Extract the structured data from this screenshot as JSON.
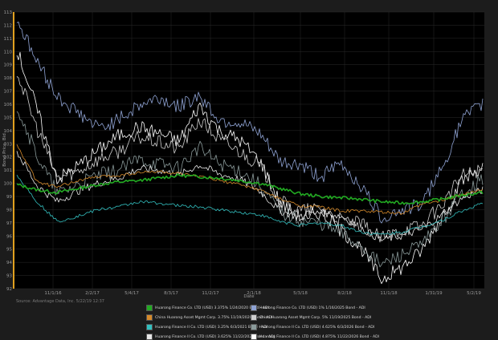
{
  "source": "Source: Advantage Data, Inc. 5/22/19 12:37",
  "chart_data": {
    "type": "line",
    "ylabel": "Bond Price, Bid",
    "xlabel": "Date",
    "ylim": [
      92,
      113
    ],
    "ytick_labels": [
      "92",
      "93",
      "94",
      "95",
      "96",
      "97",
      "98",
      "99",
      "100",
      "101",
      "102",
      "103",
      "104",
      "105",
      "106",
      "107",
      "108",
      "109",
      "110",
      "111",
      "112",
      "113"
    ],
    "xtick_labels": [
      "11/1/16",
      "2/2/17",
      "5/4/17",
      "8/3/17",
      "11/2/17",
      "2/1/18",
      "5/3/18",
      "8/2/18",
      "11/1/18",
      "1/31/19",
      "5/2/19"
    ],
    "grid": true,
    "legend_position": "bottom",
    "series": [
      {
        "name": "Huarong Finance Co. LTD (USD) 3.375% 1/24/2020 Bond - ADI",
        "color": "#22aa22",
        "values": [
          99.9,
          99.5,
          99.3,
          99.6,
          99.9,
          100.1,
          100.2,
          100.4,
          100.6,
          100.5,
          100.4,
          100.2,
          100.0,
          99.6,
          99.2,
          99.0,
          98.9,
          98.8,
          98.6,
          98.5,
          98.6,
          98.8,
          99.1,
          99.3
        ]
      },
      {
        "name": "Huarong Finance Co. LTD (USD) 1% 1/16/2025 Bond - ADI",
        "color": "#8fa3d4",
        "values": [
          112.5,
          109.2,
          106.6,
          105.4,
          104.2,
          104.8,
          105.9,
          106.5,
          105.8,
          106.7,
          104.8,
          104.6,
          103.7,
          101.6,
          101.4,
          100.5,
          101.5,
          99.8,
          97.4,
          98.0,
          98.4,
          101.2,
          104.9,
          106.0
        ]
      },
      {
        "name": "China Huarong Asset Mgmt Corp. 3.75% 11/19/2020 Bond - ADI",
        "color": "#d68a2a",
        "values": [
          102.9,
          100.1,
          99.7,
          100.2,
          100.5,
          100.6,
          100.8,
          100.9,
          100.7,
          100.5,
          100.2,
          99.9,
          99.5,
          98.8,
          98.3,
          98.2,
          97.9,
          97.9,
          97.8,
          97.7,
          98.4,
          98.7,
          99.2,
          99.5
        ]
      },
      {
        "name": "China Huarong Asset Mgmt Corp. 5% 11/19/2025 Bond - ADI",
        "color": "#cfcfcf",
        "values": [
          108.5,
          104.1,
          100.4,
          100.9,
          101.8,
          102.4,
          103.5,
          103.1,
          102.6,
          104.8,
          103.3,
          102.4,
          101.4,
          98.6,
          97.9,
          98.1,
          97.2,
          96.9,
          95.8,
          96.5,
          96.8,
          98.4,
          100.6,
          101.1
        ]
      },
      {
        "name": "Huarong Finance II Co. LTD (USD) 3.25% 6/3/2021 Bond - ADI",
        "color": "#33c0c0",
        "values": [
          100.6,
          98.6,
          97.1,
          97.5,
          98.0,
          98.2,
          98.6,
          98.5,
          98.3,
          98.2,
          98.0,
          97.8,
          97.6,
          97.1,
          96.8,
          97.0,
          96.8,
          96.3,
          96.1,
          96.3,
          96.7,
          97.2,
          97.9,
          98.5
        ]
      },
      {
        "name": "Huarong Finance II Co. LTD (USD) 4.625% 6/3/2026 Bond - ADI",
        "color": "#8a9a9a",
        "values": [
          105.9,
          102.1,
          99.2,
          99.9,
          100.6,
          101.0,
          101.8,
          101.5,
          101.2,
          102.7,
          101.5,
          101.0,
          99.9,
          97.8,
          97.2,
          97.0,
          96.2,
          95.3,
          93.8,
          94.6,
          95.3,
          97.2,
          99.3,
          100.3
        ]
      },
      {
        "name": "Huarong Finance II Co. LTD (USD) 3.625% 11/22/2021 Bond - ADI",
        "color": "#e8e8e8",
        "values": [
          102.4,
          99.8,
          98.6,
          99.4,
          100.0,
          100.4,
          101.1,
          101.0,
          100.6,
          101.4,
          100.7,
          100.3,
          99.4,
          97.9,
          97.4,
          97.8,
          97.5,
          96.6,
          95.7,
          96.0,
          96.5,
          97.6,
          98.9,
          99.5
        ]
      },
      {
        "name": "Huarong Finance II Co. LTD (USD) 4.875% 11/22/2026 Bond - ADI",
        "color": "#ffffff",
        "values": [
          110.2,
          105.6,
          100.3,
          101.3,
          102.5,
          103.6,
          104.3,
          103.8,
          103.2,
          105.9,
          104.0,
          103.3,
          101.7,
          98.5,
          97.4,
          97.8,
          96.4,
          95.1,
          92.7,
          93.6,
          94.9,
          97.6,
          100.2,
          101.3
        ]
      }
    ]
  }
}
